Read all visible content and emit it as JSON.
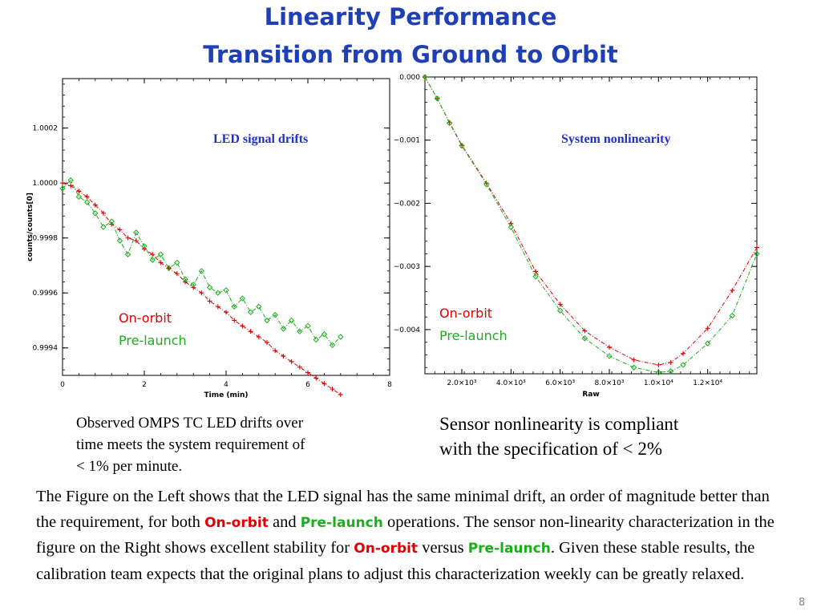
{
  "slide": {
    "title_line1": "Linearity Performance",
    "title_line2": "Transition from Ground to Orbit",
    "page_number": "8"
  },
  "colors": {
    "title": "#1f3fb5",
    "on_orbit": "#e00000",
    "pre_launch": "#1aae1a",
    "annotation": "#1f2fd0"
  },
  "left_caption": {
    "line1": "Observed OMPS TC LED drifts over",
    "line2": "time meets the system requirement  of",
    "line3": "< 1%  per minute."
  },
  "right_caption": {
    "line1": "Sensor nonlinearity is compliant",
    "line2": "with the specification of < 2%"
  },
  "paragraph": {
    "p1": "The Figure on the Left shows that the LED signal has the same minimal drift, an order of magnitude better than the requirement, for both ",
    "on_orbit": "On-orbit",
    "p2": " and ",
    "pre_launch": "Pre-launch",
    "p3": " operations. The sensor non-linearity characterization  in the figure on the Right shows excellent stability for ",
    "on_orbit2": "On-orbit",
    "p4": " versus ",
    "pre_launch2": "Pre-launch",
    "p5": ". Given these stable results, the calibration team expects that the original plans to adjust this characterization weekly can be greatly relaxed."
  },
  "chart_data": [
    {
      "type": "line",
      "annotation": "LED signal drifts",
      "xlabel": "Time (min)",
      "ylabel": "counts/counts[0]",
      "xlim": [
        0,
        8
      ],
      "ylim": [
        0.9993,
        1.00038
      ],
      "xticks": [
        "0",
        "2",
        "4",
        "6",
        "8"
      ],
      "xtick_values": [
        0,
        2,
        4,
        6,
        8
      ],
      "yticks": [
        "1.0002",
        "1.0000",
        "0.9998",
        "0.9996",
        "0.9994"
      ],
      "ytick_values": [
        1.0002,
        1.0,
        0.9998,
        0.9996,
        0.9994
      ],
      "legend": [
        "On-orbit",
        "Pre-launch"
      ],
      "series": [
        {
          "name": "On-orbit",
          "color": "#e00000",
          "marker": "plus",
          "x": [
            0.0,
            0.2,
            0.4,
            0.6,
            0.8,
            1.0,
            1.2,
            1.4,
            1.6,
            1.8,
            2.0,
            2.2,
            2.4,
            2.6,
            2.8,
            3.0,
            3.2,
            3.4,
            3.6,
            3.8,
            4.0,
            4.2,
            4.4,
            4.6,
            4.8,
            5.0,
            5.2,
            5.4,
            5.6,
            5.8,
            6.0,
            6.2,
            6.4,
            6.6,
            6.8
          ],
          "y": [
            1.0,
            0.99999,
            0.99997,
            0.99995,
            0.99992,
            0.99989,
            0.99985,
            0.99983,
            0.9998,
            0.99979,
            0.99976,
            0.99974,
            0.99971,
            0.99969,
            0.99967,
            0.99964,
            0.99962,
            0.9996,
            0.99957,
            0.99955,
            0.99953,
            0.9995,
            0.99948,
            0.99946,
            0.99944,
            0.99942,
            0.99939,
            0.99937,
            0.99935,
            0.99933,
            0.99931,
            0.99929,
            0.99927,
            0.99925,
            0.99923
          ]
        },
        {
          "name": "Pre-launch",
          "color": "#1aae1a",
          "marker": "diamond",
          "x": [
            0.0,
            0.2,
            0.4,
            0.6,
            0.8,
            1.0,
            1.2,
            1.4,
            1.6,
            1.8,
            2.0,
            2.2,
            2.4,
            2.6,
            2.8,
            3.0,
            3.2,
            3.4,
            3.6,
            3.8,
            4.0,
            4.2,
            4.4,
            4.6,
            4.8,
            5.0,
            5.2,
            5.4,
            5.6,
            5.8,
            6.0,
            6.2,
            6.4,
            6.6,
            6.8
          ],
          "y": [
            0.99998,
            1.00001,
            0.99995,
            0.99993,
            0.99989,
            0.99984,
            0.99986,
            0.99979,
            0.99974,
            0.99982,
            0.99977,
            0.99972,
            0.99974,
            0.99969,
            0.99971,
            0.99965,
            0.99963,
            0.99968,
            0.99962,
            0.9996,
            0.99961,
            0.99955,
            0.99958,
            0.99953,
            0.99955,
            0.9995,
            0.99952,
            0.99947,
            0.9995,
            0.99946,
            0.99948,
            0.99943,
            0.99945,
            0.99941,
            0.99944
          ]
        }
      ]
    },
    {
      "type": "line",
      "annotation": "System nonlinearity",
      "xlabel": "Raw",
      "ylabel": "",
      "xlim": [
        500,
        14000
      ],
      "ylim": [
        -0.0047,
        0.0
      ],
      "xticks": [
        "2.0×10³",
        "4.0×10³",
        "6.0×10³",
        "8.0×10³",
        "1.0×10⁴",
        "1.2×10⁴"
      ],
      "xtick_values": [
        2000,
        4000,
        6000,
        8000,
        10000,
        12000
      ],
      "yticks": [
        "0.000",
        "−0.001",
        "−0.002",
        "−0.003",
        "−0.004"
      ],
      "ytick_values": [
        0.0,
        -0.001,
        -0.002,
        -0.003,
        -0.004
      ],
      "legend": [
        "On-orbit",
        "Pre-launch"
      ],
      "series": [
        {
          "name": "On-orbit",
          "color": "#e00000",
          "marker": "plus",
          "x": [
            500,
            1000,
            1500,
            2000,
            3000,
            4000,
            5000,
            6000,
            7000,
            8000,
            9000,
            10000,
            10500,
            11000,
            12000,
            13000,
            14000
          ],
          "y": [
            0.0,
            -0.00034,
            -0.00072,
            -0.00108,
            -0.00168,
            -0.00232,
            -0.00308,
            -0.0036,
            -0.00402,
            -0.00428,
            -0.00448,
            -0.00456,
            -0.00452,
            -0.00438,
            -0.00398,
            -0.00338,
            -0.0027
          ]
        },
        {
          "name": "Pre-launch",
          "color": "#1aae1a",
          "marker": "diamond",
          "x": [
            500,
            1000,
            1500,
            2000,
            3000,
            4000,
            5000,
            6000,
            7000,
            8000,
            9000,
            10000,
            10500,
            11000,
            12000,
            13000,
            14000
          ],
          "y": [
            0.0,
            -0.00034,
            -0.00073,
            -0.00109,
            -0.0017,
            -0.00238,
            -0.00316,
            -0.0037,
            -0.00414,
            -0.00442,
            -0.0046,
            -0.00468,
            -0.00466,
            -0.00456,
            -0.00422,
            -0.00378,
            -0.0028
          ]
        }
      ]
    }
  ]
}
